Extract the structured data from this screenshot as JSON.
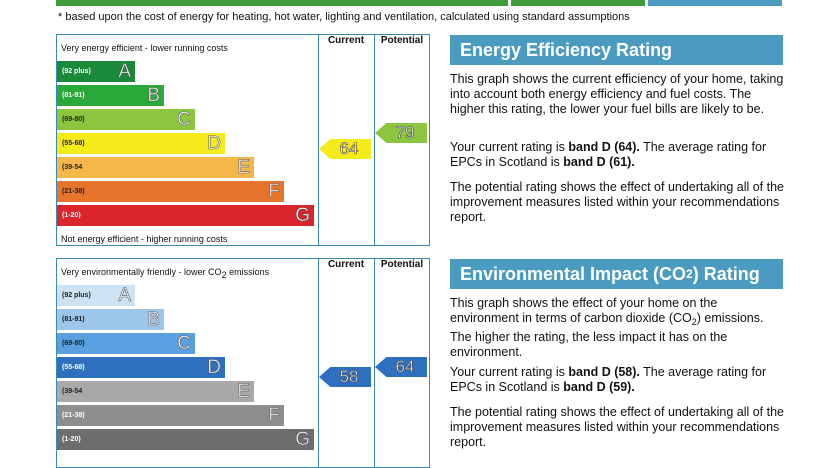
{
  "footnote": "* based upon the cost of energy for heating, hot water, lighting and ventilation, calculated using standard assumptions",
  "colors": {
    "accent": "#4a9bbf",
    "green_bar": "#3f9b3a"
  },
  "energy": {
    "top_label": "Very energy efficient - lower running costs",
    "bottom_label": "Not energy efficient - higher running costs",
    "current_header": "Current",
    "potential_header": "Potential",
    "bands": [
      {
        "range": "(92 plus)",
        "letter": "A",
        "color": "#1a8a3a",
        "text_color": "#ffffff"
      },
      {
        "range": "(81-91)",
        "letter": "B",
        "color": "#2aa83a",
        "text_color": "#ffffff"
      },
      {
        "range": "(69-80)",
        "letter": "C",
        "color": "#8cc63f",
        "text_color": "#222222"
      },
      {
        "range": "(55-68)",
        "letter": "D",
        "color": "#f5ea1a",
        "text_color": "#222222"
      },
      {
        "range": "(39-54",
        "letter": "E",
        "color": "#f6b74a",
        "text_color": "#222222"
      },
      {
        "range": "(21-38)",
        "letter": "F",
        "color": "#e7742c",
        "text_color": "#222222"
      },
      {
        "range": "(1-20)",
        "letter": "G",
        "color": "#d9252b",
        "text_color": "#ffffff"
      }
    ],
    "current": {
      "value": "64",
      "band_index": 3,
      "color": "#f5ea1a"
    },
    "potential": {
      "value": "79",
      "band_index": 2,
      "color": "#8cc63f"
    },
    "title": "Energy Efficiency Rating",
    "para1": "This graph shows the current efficiency of your home, taking into account both energy efficiency and fuel costs. The higher this rating, the lower your fuel bills are likely to be.",
    "para2_pre": "Your current rating is ",
    "para2_b1": "band D (64).",
    "para2_mid": " The average rating for EPCs in Scotland is ",
    "para2_b2": "band D (61).",
    "para3": "The potential rating shows the effect of undertaking all of the improvement measures listed within your recommendations report."
  },
  "environment": {
    "top_label_pre": "Very environmentally friendly - lower CO",
    "top_label_sub": "2",
    "top_label_post": " emissions",
    "current_header": "Current",
    "potential_header": "Potential",
    "bands": [
      {
        "range": "(92 plus)",
        "letter": "A",
        "color": "#cde3f3",
        "text_color": "#222222"
      },
      {
        "range": "(81-91)",
        "letter": "B",
        "color": "#9cc6ea",
        "text_color": "#222222"
      },
      {
        "range": "(69-80)",
        "letter": "C",
        "color": "#5aa0e0",
        "text_color": "#222222"
      },
      {
        "range": "(55-68)",
        "letter": "D",
        "color": "#2e6fc0",
        "text_color": "#ffffff"
      },
      {
        "range": "(39-54",
        "letter": "E",
        "color": "#a9a9a9",
        "text_color": "#222222"
      },
      {
        "range": "(21-38)",
        "letter": "F",
        "color": "#8e8e8e",
        "text_color": "#ffffff"
      },
      {
        "range": "(1-20)",
        "letter": "G",
        "color": "#6d6d6d",
        "text_color": "#ffffff"
      }
    ],
    "current": {
      "value": "58",
      "band_index": 3,
      "color": "#2e6fc0"
    },
    "potential": {
      "value": "64",
      "band_index": 3,
      "color": "#2e6fc0"
    },
    "title_pre": "Environmental Impact (CO",
    "title_sub": "2",
    "title_post": ") Rating",
    "para1_pre": "This graph shows the effect of your home on the environment in terms of carbon dioxide (CO",
    "para1_sub": "2",
    "para1_post": ") emissions. The higher the rating, the less impact it has on the environment.",
    "para2_pre": "Your current rating is ",
    "para2_b1": "band D (58).",
    "para2_mid": " The average rating for EPCs in Scotland is ",
    "para2_b2": "band D (59).",
    "para3": "The potential rating shows the effect of undertaking all of the improvement measures listed within your recommendations report."
  }
}
